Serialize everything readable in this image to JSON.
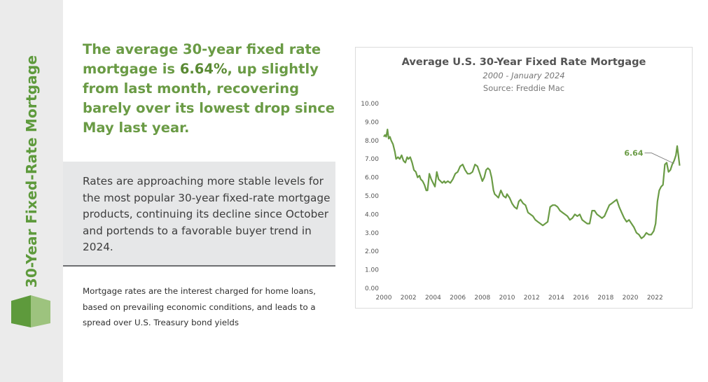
{
  "sidebar": {
    "title": "30-Year Fixed-Rate Mortgage"
  },
  "headline": {
    "part1": "The average 30-year fixed rate mortgage is ",
    "highlight": "6.64%",
    "part2": ", up slightly from last month, recovering barely over its lowest drop since May last year."
  },
  "body_text": "Rates are approaching more stable levels for the most popular 30-year fixed-rate mortgage products, continuing its decline since October and portends to a favorable buyer trend in 2024.",
  "footnote": "Mortgage rates are the interest charged for home loans, based on prevailing economic conditions, and leads to a spread over U.S. Treasury bond yields",
  "colors": {
    "accent": "#5e9a3c",
    "line": "#6a9b45",
    "sidebar_bg": "#ebebeb",
    "box_bg": "#e6e7e8"
  },
  "chart_data": {
    "type": "line",
    "title": "Average U.S. 30-Year Fixed Rate Mortgage",
    "subtitle": "2000 - January 2024",
    "source": "Source: Freddie Mac",
    "xlabel": "",
    "ylabel": "",
    "xlim": [
      2000,
      2024.2
    ],
    "ylim": [
      0,
      10
    ],
    "x_ticks": [
      "2000",
      "2002",
      "2004",
      "2006",
      "2008",
      "2010",
      "2012",
      "2014",
      "2016",
      "2018",
      "2020",
      "2022"
    ],
    "y_ticks": [
      "0.00",
      "1.00",
      "2.00",
      "3.00",
      "4.00",
      "5.00",
      "6.00",
      "7.00",
      "8.00",
      "9.00",
      "10.00"
    ],
    "grid": false,
    "annotation": {
      "label": "6.64",
      "x": 2024.0,
      "y": 6.64
    },
    "series": [
      {
        "x": [
          2000.0,
          2000.1,
          2000.2,
          2000.3,
          2000.4,
          2000.5,
          2000.6,
          2000.75,
          2000.9,
          2001.0,
          2001.15,
          2001.3,
          2001.45,
          2001.6,
          2001.75,
          2001.9,
          2002.0,
          2002.15,
          2002.3,
          2002.45,
          2002.6,
          2002.75,
          2002.9,
          2003.0,
          2003.15,
          2003.3,
          2003.45,
          2003.55,
          2003.7,
          2003.85,
          2004.0,
          2004.15,
          2004.3,
          2004.45,
          2004.6,
          2004.75,
          2004.9,
          2005.0,
          2005.2,
          2005.4,
          2005.6,
          2005.8,
          2006.0,
          2006.2,
          2006.4,
          2006.6,
          2006.8,
          2007.0,
          2007.2,
          2007.4,
          2007.6,
          2007.8,
          2008.0,
          2008.15,
          2008.3,
          2008.45,
          2008.6,
          2008.75,
          2008.9,
          2009.0,
          2009.15,
          2009.3,
          2009.5,
          2009.7,
          2009.9,
          2010.0,
          2010.2,
          2010.4,
          2010.6,
          2010.8,
          2010.95,
          2011.1,
          2011.3,
          2011.5,
          2011.7,
          2011.9,
          2012.1,
          2012.3,
          2012.5,
          2012.7,
          2012.9,
          2013.1,
          2013.3,
          2013.5,
          2013.7,
          2013.9,
          2014.1,
          2014.3,
          2014.5,
          2014.7,
          2014.9,
          2015.1,
          2015.3,
          2015.5,
          2015.7,
          2015.9,
          2016.1,
          2016.3,
          2016.5,
          2016.7,
          2016.9,
          2017.1,
          2017.3,
          2017.5,
          2017.7,
          2017.9,
          2018.1,
          2018.3,
          2018.5,
          2018.7,
          2018.9,
          2019.1,
          2019.3,
          2019.5,
          2019.7,
          2019.9,
          2020.1,
          2020.3,
          2020.5,
          2020.7,
          2020.9,
          2021.1,
          2021.3,
          2021.5,
          2021.7,
          2021.9,
          2022.05,
          2022.2,
          2022.35,
          2022.5,
          2022.65,
          2022.8,
          2022.95,
          2023.1,
          2023.25,
          2023.4,
          2023.55,
          2023.7,
          2023.8,
          2023.9,
          2024.0
        ],
        "y": [
          8.2,
          8.3,
          8.2,
          8.6,
          8.1,
          8.2,
          8.0,
          7.8,
          7.4,
          7.0,
          7.1,
          7.0,
          7.2,
          6.9,
          6.8,
          7.1,
          7.0,
          7.1,
          6.8,
          6.4,
          6.3,
          6.0,
          6.1,
          5.9,
          5.8,
          5.6,
          5.3,
          5.3,
          6.2,
          5.9,
          5.7,
          5.5,
          6.3,
          5.9,
          5.8,
          5.7,
          5.8,
          5.7,
          5.8,
          5.7,
          5.9,
          6.2,
          6.3,
          6.6,
          6.7,
          6.4,
          6.2,
          6.2,
          6.3,
          6.7,
          6.6,
          6.2,
          5.8,
          6.0,
          6.4,
          6.5,
          6.4,
          6.0,
          5.3,
          5.1,
          5.0,
          4.9,
          5.3,
          5.0,
          4.9,
          5.1,
          4.9,
          4.6,
          4.4,
          4.3,
          4.7,
          4.8,
          4.6,
          4.5,
          4.1,
          4.0,
          3.9,
          3.7,
          3.6,
          3.5,
          3.4,
          3.5,
          3.6,
          4.4,
          4.5,
          4.5,
          4.4,
          4.2,
          4.1,
          4.0,
          3.9,
          3.7,
          3.8,
          4.0,
          3.9,
          4.0,
          3.7,
          3.6,
          3.5,
          3.5,
          4.2,
          4.2,
          4.0,
          3.9,
          3.8,
          3.9,
          4.2,
          4.5,
          4.6,
          4.7,
          4.8,
          4.4,
          4.1,
          3.8,
          3.6,
          3.7,
          3.5,
          3.3,
          3.0,
          2.9,
          2.7,
          2.8,
          3.0,
          2.9,
          2.9,
          3.1,
          3.5,
          4.7,
          5.3,
          5.5,
          5.6,
          6.7,
          6.8,
          6.3,
          6.4,
          6.7,
          6.9,
          7.2,
          7.7,
          7.2,
          6.64
        ]
      }
    ]
  }
}
